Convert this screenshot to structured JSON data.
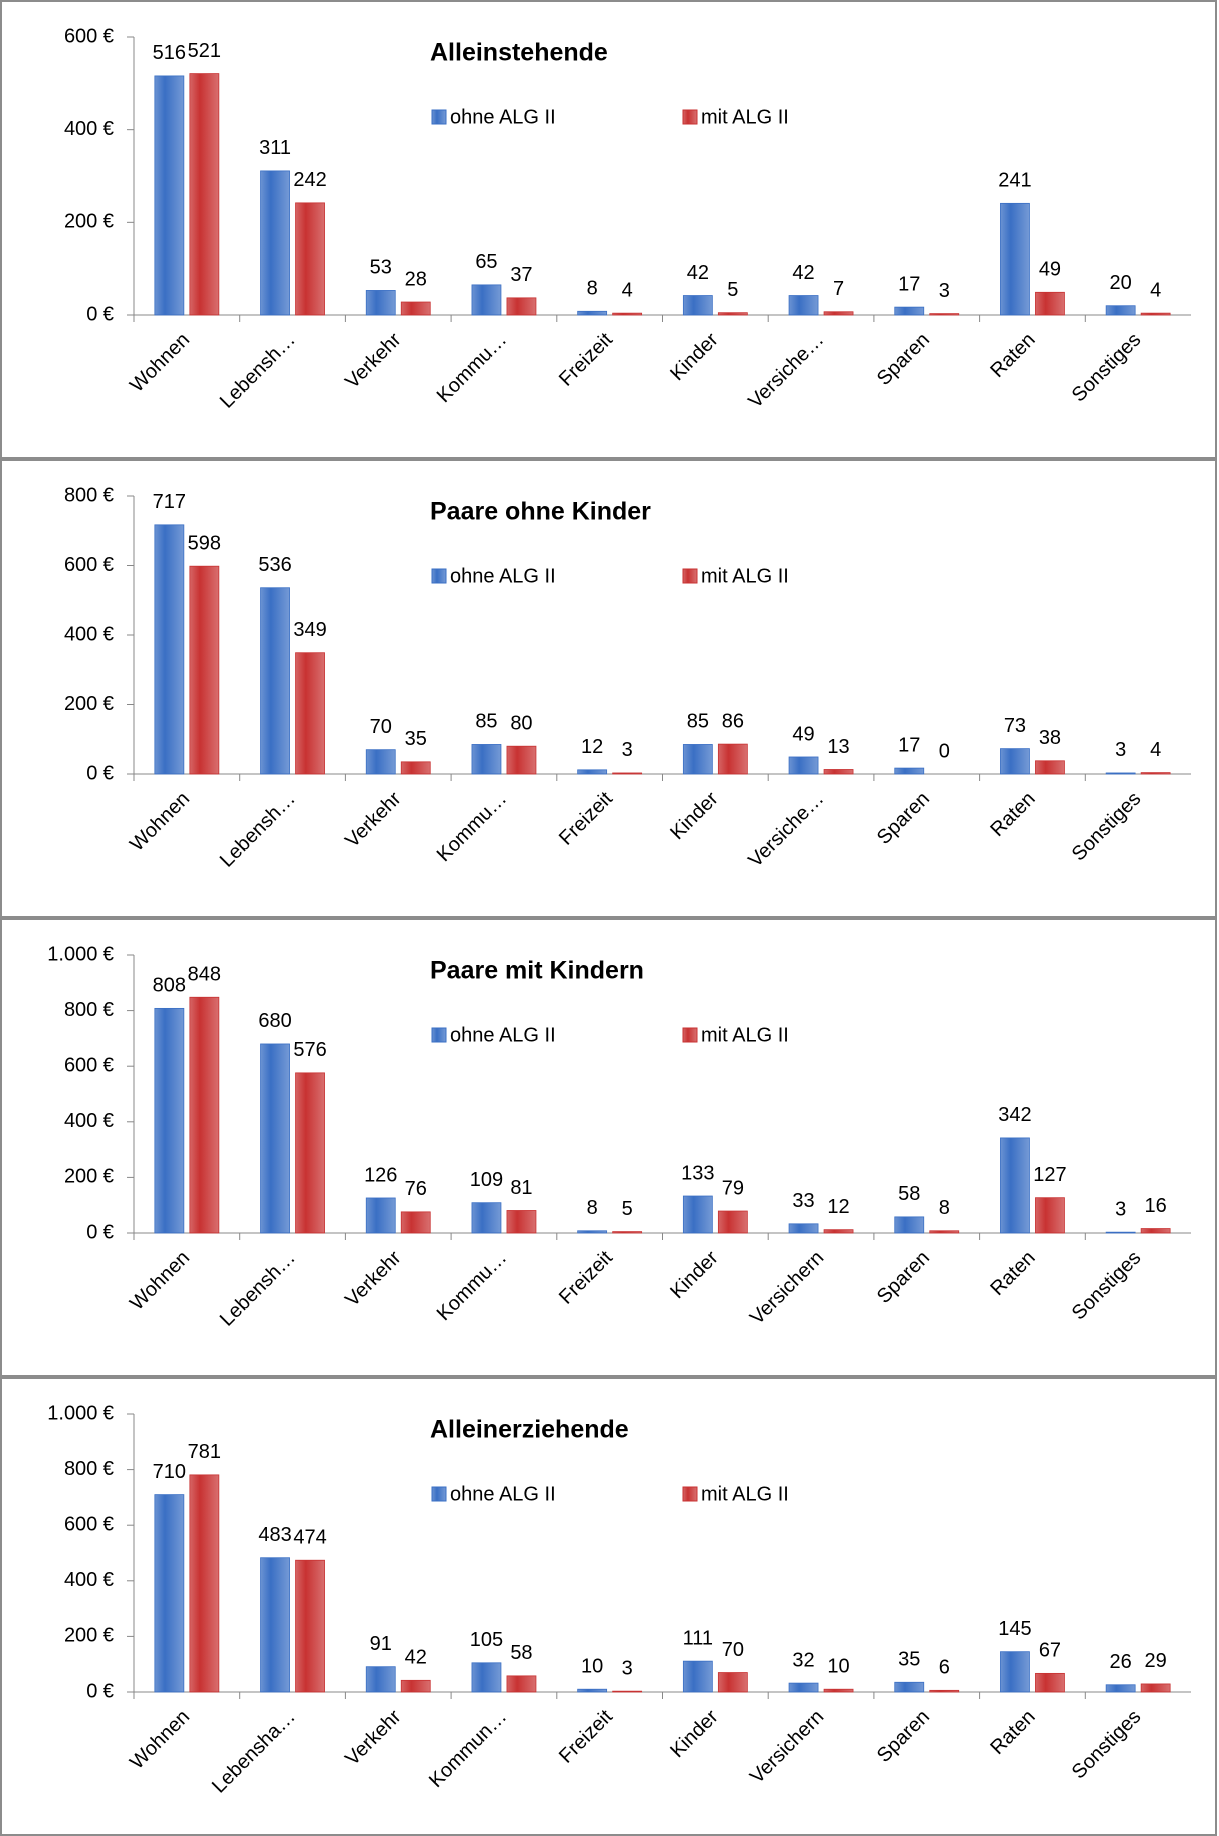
{
  "chart_data": [
    {
      "type": "bar",
      "title": "Alleinstehende",
      "categories": [
        "Wohnen",
        "Lebensh…",
        "Verkehr",
        "Kommu…",
        "Freizeit",
        "Kinder",
        "Versiche…",
        "Sparen",
        "Raten",
        "Sonstiges"
      ],
      "series": [
        {
          "name": "ohne ALG II",
          "color": "#3a6fc4",
          "values": [
            516,
            311,
            53,
            65,
            8,
            42,
            42,
            17,
            241,
            20
          ]
        },
        {
          "name": "mit ALG II",
          "color": "#c83232",
          "values": [
            521,
            242,
            28,
            37,
            4,
            5,
            7,
            3,
            49,
            4
          ]
        }
      ],
      "ylim": [
        0,
        600
      ],
      "yticks": [
        {
          "value": 0,
          "label": "0 €"
        },
        {
          "value": 200,
          "label": "200 €"
        },
        {
          "value": 400,
          "label": "400 €"
        },
        {
          "value": 600,
          "label": "600 €"
        }
      ],
      "grid": false
    },
    {
      "type": "bar",
      "title": "Paare ohne Kinder",
      "categories": [
        "Wohnen",
        "Lebensh…",
        "Verkehr",
        "Kommu…",
        "Freizeit",
        "Kinder",
        "Versiche…",
        "Sparen",
        "Raten",
        "Sonstiges"
      ],
      "series": [
        {
          "name": "ohne ALG II",
          "color": "#3a6fc4",
          "values": [
            717,
            536,
            70,
            85,
            12,
            85,
            49,
            17,
            73,
            3
          ]
        },
        {
          "name": "mit ALG II",
          "color": "#c83232",
          "values": [
            598,
            349,
            35,
            80,
            3,
            86,
            13,
            0,
            38,
            4
          ]
        }
      ],
      "ylim": [
        0,
        800
      ],
      "yticks": [
        {
          "value": 0,
          "label": "0 €"
        },
        {
          "value": 200,
          "label": "200 €"
        },
        {
          "value": 400,
          "label": "400 €"
        },
        {
          "value": 600,
          "label": "600 €"
        },
        {
          "value": 800,
          "label": "800 €"
        }
      ],
      "grid": false
    },
    {
      "type": "bar",
      "title": "Paare mit Kindern",
      "categories": [
        "Wohnen",
        "Lebensh…",
        "Verkehr",
        "Kommu…",
        "Freizeit",
        "Kinder",
        "Versichern",
        "Sparen",
        "Raten",
        "Sonstiges"
      ],
      "series": [
        {
          "name": "ohne ALG II",
          "color": "#3a6fc4",
          "values": [
            808,
            680,
            126,
            109,
            8,
            133,
            33,
            58,
            342,
            3
          ]
        },
        {
          "name": "mit ALG II",
          "color": "#c83232",
          "values": [
            848,
            576,
            76,
            81,
            5,
            79,
            12,
            8,
            127,
            16
          ]
        }
      ],
      "ylim": [
        0,
        1000
      ],
      "yticks": [
        {
          "value": 0,
          "label": "0 €"
        },
        {
          "value": 200,
          "label": "200 €"
        },
        {
          "value": 400,
          "label": "400 €"
        },
        {
          "value": 600,
          "label": "600 €"
        },
        {
          "value": 800,
          "label": "800 €"
        },
        {
          "value": 1000,
          "label": "1.000 €"
        }
      ],
      "grid": false
    },
    {
      "type": "bar",
      "title": "Alleinerziehende",
      "categories": [
        "Wohnen",
        "Lebensha…",
        "Verkehr",
        "Kommun…",
        "Freizeit",
        "Kinder",
        "Versichern",
        "Sparen",
        "Raten",
        "Sonstiges"
      ],
      "series": [
        {
          "name": "ohne ALG II",
          "color": "#3a6fc4",
          "values": [
            710,
            483,
            91,
            105,
            10,
            111,
            32,
            35,
            145,
            26
          ]
        },
        {
          "name": "mit ALG II",
          "color": "#c83232",
          "values": [
            781,
            474,
            42,
            58,
            3,
            70,
            10,
            6,
            67,
            29
          ]
        }
      ],
      "ylim": [
        0,
        1000
      ],
      "yticks": [
        {
          "value": 0,
          "label": "0 €"
        },
        {
          "value": 200,
          "label": "200 €"
        },
        {
          "value": 400,
          "label": "400 €"
        },
        {
          "value": 600,
          "label": "600 €"
        },
        {
          "value": 800,
          "label": "800 €"
        },
        {
          "value": 1000,
          "label": "1.000 €"
        }
      ],
      "grid": false
    }
  ]
}
